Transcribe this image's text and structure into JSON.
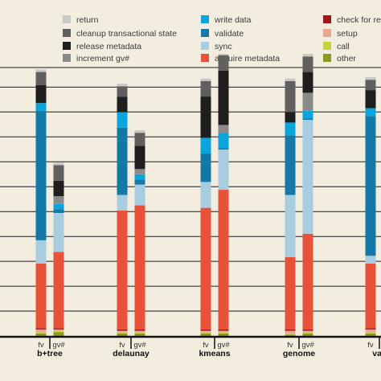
{
  "chart_data": {
    "type": "bar",
    "stacked": true,
    "title": "",
    "xlabel": "",
    "ylabel": "",
    "ylim": [
      0,
      100
    ],
    "grid": true,
    "legend_position": "top",
    "groups": [
      "b+tree",
      "delaunay",
      "kmeans",
      "genome",
      "vac"
    ],
    "subcategories": [
      "fv",
      "gv#"
    ],
    "components": [
      {
        "name": "return",
        "color": "#c9c9c9"
      },
      {
        "name": "cleanup transactional state",
        "color": "#606060"
      },
      {
        "name": "release metadata",
        "color": "#1e1e1e"
      },
      {
        "name": "increment gv#",
        "color": "#8a8a8a"
      },
      {
        "name": "write data",
        "color": "#0aa5dd"
      },
      {
        "name": "validate",
        "color": "#1479a6"
      },
      {
        "name": "sync",
        "color": "#a8cce0"
      },
      {
        "name": "acquire metadata",
        "color": "#e9523a"
      },
      {
        "name": "check for re",
        "color": "#a3161c"
      },
      {
        "name": "setup",
        "color": "#e9a592"
      },
      {
        "name": "call",
        "color": "#c6d33e"
      },
      {
        "name": "other",
        "color": "#8c9a22"
      }
    ],
    "stack_order": [
      "other",
      "call",
      "setup",
      "check for re",
      "acquire metadata",
      "sync",
      "validate",
      "write data",
      "increment gv#",
      "release metadata",
      "cleanup transactional state",
      "return"
    ],
    "bars": [
      {
        "group": "b+tree",
        "label": "fv",
        "values": {
          "other": 1,
          "call": 0.5,
          "setup": 1,
          "check for re": 0.5,
          "acquire metadata": 25,
          "sync": 9,
          "validate": 50,
          "write data": 3,
          "increment gv#": 0,
          "release metadata": 7,
          "cleanup transactional state": 5,
          "return": 1
        }
      },
      {
        "group": "b+tree",
        "label": "gv#",
        "values": {
          "other": 1.5,
          "call": 0.5,
          "setup": 0.5,
          "check for re": 0.5,
          "acquire metadata": 29.5,
          "sync": 15,
          "validate": 1.5,
          "write data": 2,
          "increment gv#": 3,
          "release metadata": 6,
          "cleanup transactional state": 6,
          "return": 1
        }
      },
      {
        "group": "delaunay",
        "label": "fv",
        "values": {
          "other": 1,
          "call": 0.5,
          "setup": 0.5,
          "check for re": 0.5,
          "acquire metadata": 46,
          "sync": 6,
          "validate": 26,
          "write data": 6,
          "increment gv#": 0,
          "release metadata": 6,
          "cleanup transactional state": 4,
          "return": 1
        }
      },
      {
        "group": "delaunay",
        "label": "gv#",
        "values": {
          "other": 1,
          "call": 0.5,
          "setup": 0.5,
          "check for re": 0.5,
          "acquire metadata": 48,
          "sync": 8,
          "validate": 2,
          "write data": 2,
          "increment gv#": 2,
          "release metadata": 9,
          "cleanup transactional state": 5,
          "return": 1
        }
      },
      {
        "group": "kmeans",
        "label": "fv",
        "values": {
          "other": 1,
          "call": 0.5,
          "setup": 0.5,
          "check for re": 0.5,
          "acquire metadata": 47,
          "sync": 10,
          "validate": 11,
          "write data": 6,
          "increment gv#": 0,
          "release metadata": 16,
          "cleanup transactional state": 6,
          "return": 1
        }
      },
      {
        "group": "kmeans",
        "label": "gv#",
        "values": {
          "other": 1,
          "call": 0.5,
          "setup": 0.5,
          "check for re": 0.5,
          "acquire metadata": 54,
          "sync": 15.5,
          "validate": 0.5,
          "write data": 6,
          "increment gv#": 3,
          "release metadata": 21,
          "cleanup transactional state": 6,
          "return": 0.5
        }
      },
      {
        "group": "genome",
        "label": "fv",
        "values": {
          "other": 0.5,
          "call": 0.5,
          "setup": 1,
          "check for re": 0.5,
          "acquire metadata": 28,
          "sync": 24,
          "validate": 23,
          "write data": 5,
          "increment gv#": 0,
          "release metadata": 4,
          "cleanup transactional state": 12,
          "return": 1
        }
      },
      {
        "group": "genome",
        "label": "gv#",
        "values": {
          "other": 1,
          "call": 0.5,
          "setup": 0.5,
          "check for re": 0.5,
          "acquire metadata": 37,
          "sync": 44,
          "validate": 0.5,
          "write data": 3,
          "increment gv#": 7,
          "release metadata": 8,
          "cleanup transactional state": 6,
          "return": 1
        }
      },
      {
        "group": "vac",
        "label": "fv",
        "values": {
          "other": 1,
          "call": 0.5,
          "setup": 1,
          "check for re": 0.5,
          "acquire metadata": 25,
          "sync": 3,
          "validate": 54,
          "write data": 3,
          "increment gv#": 0,
          "release metadata": 7,
          "cleanup transactional state": 4,
          "return": 1
        }
      }
    ]
  }
}
